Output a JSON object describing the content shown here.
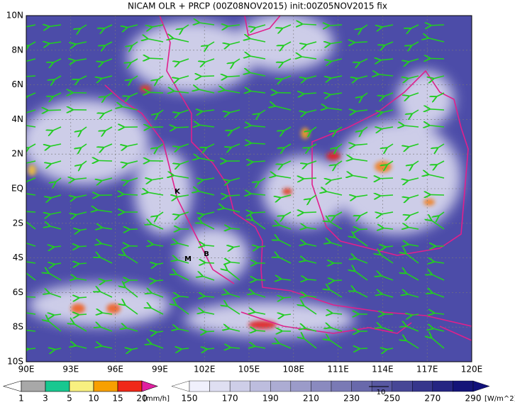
{
  "title": "NICAM OLR + PRCP (00Z08NOV2015) init:00Z05NOV2015 fix",
  "map": {
    "lat_labels": [
      "10N",
      "8N",
      "6N",
      "4N",
      "2N",
      "EQ",
      "2S",
      "4S",
      "6S",
      "8S",
      "10S"
    ],
    "lon_labels": [
      "90E",
      "93E",
      "96E",
      "99E",
      "102E",
      "105E",
      "108E",
      "111E",
      "114E",
      "117E",
      "120E"
    ],
    "place_labels": [
      "K",
      "M",
      "B"
    ]
  },
  "precip_legend": {
    "labels": [
      1,
      3,
      5,
      10,
      15,
      20
    ],
    "unit": "[mm/h]"
  },
  "olr_legend": {
    "labels": [
      150,
      170,
      190,
      210,
      230,
      250,
      270,
      290
    ],
    "unit": "[W/m^2]"
  },
  "wind_reference": "10"
}
